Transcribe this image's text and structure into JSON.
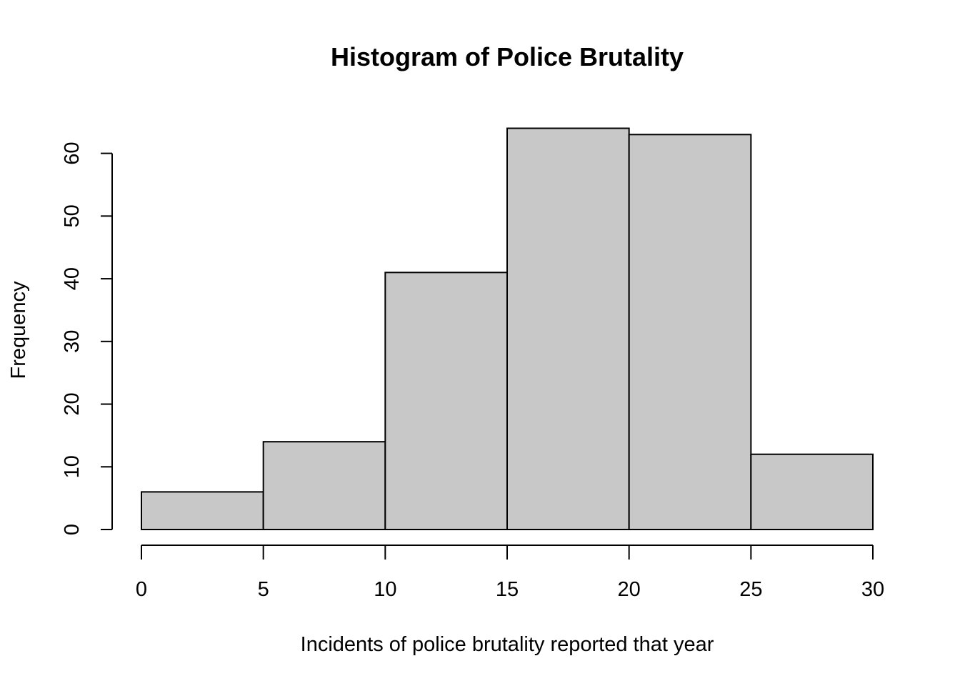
{
  "chart_data": {
    "type": "bar",
    "subtype": "histogram",
    "title": "Histogram of Police Brutality",
    "xlabel": "Incidents of police brutality reported that year",
    "ylabel": "Frequency",
    "bins": [
      {
        "from": 0,
        "to": 5,
        "count": 6
      },
      {
        "from": 5,
        "to": 10,
        "count": 14
      },
      {
        "from": 10,
        "to": 15,
        "count": 41
      },
      {
        "from": 15,
        "to": 20,
        "count": 64
      },
      {
        "from": 20,
        "to": 25,
        "count": 63
      },
      {
        "from": 25,
        "to": 30,
        "count": 12
      }
    ],
    "xlim": [
      0,
      30
    ],
    "ylim": [
      0,
      60
    ],
    "xticks": [
      "0",
      "5",
      "10",
      "15",
      "20",
      "25",
      "30"
    ],
    "yticks": [
      "0",
      "10",
      "20",
      "30",
      "40",
      "50",
      "60"
    ],
    "grid": false,
    "legend": "none",
    "colors": {
      "bar_fill": "#c8c8c8",
      "bar_stroke": "#000000",
      "axis": "#000000"
    }
  }
}
